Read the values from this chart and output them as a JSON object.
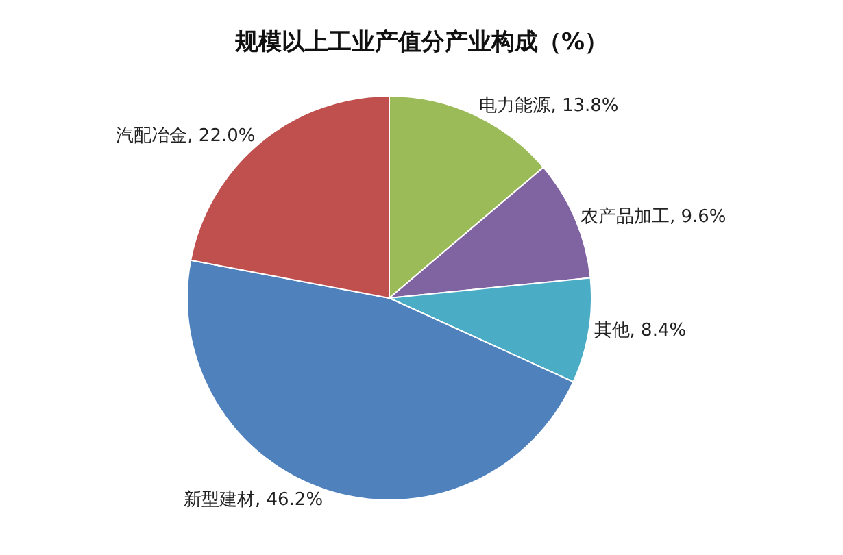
{
  "chart_data": {
    "type": "pie",
    "title": "规模以上工业产值分产业构成（%）",
    "categories": [
      "电力能源",
      "农产品加工",
      "其他",
      "新型建材",
      "汽配冶金"
    ],
    "values": [
      13.8,
      9.6,
      8.4,
      46.2,
      22.0
    ],
    "value_labels": [
      "13.8%",
      "9.6%",
      "8.4%",
      "46.2%",
      "22.0%"
    ],
    "colors": [
      "#9bbb59",
      "#8064a2",
      "#4bacc6",
      "#4f81bd",
      "#c0504d"
    ],
    "legend": false
  }
}
